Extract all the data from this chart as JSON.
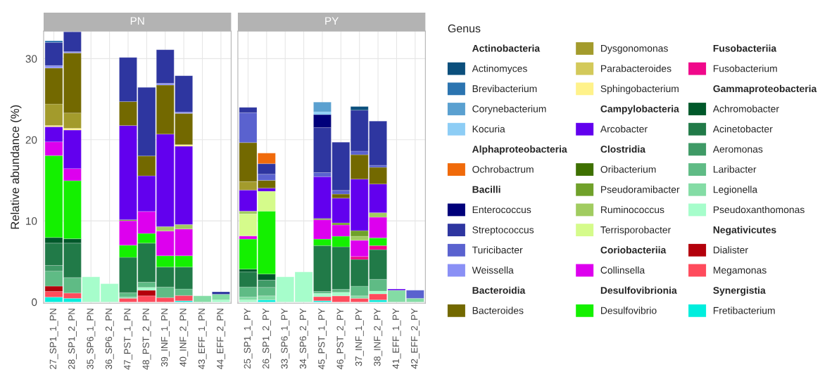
{
  "chart_data": [
    {
      "type": "bar",
      "stacked": true,
      "title": "PN",
      "ylabel": "Relative abundance (%)",
      "legend_title": "Genus",
      "legend": "right",
      "grid": true,
      "categories": [
        "27_SP1_1_PN",
        "28_SP1_2_PN",
        "35_SP6_1_PN",
        "36_SP6_2_PN",
        "47_PST_1_PN",
        "48_PST_2_PN",
        "39_INF_1_PN",
        "40_INF_2_PN",
        "43_EFF_1_PN",
        "44_EFF_2_PN"
      ],
      "ylim": [
        -0.15,
        33.4
      ],
      "yticks": [
        0,
        10,
        20,
        30
      ],
      "series": [
        {
          "name": "Fretibacterium",
          "color": "#00eedd",
          "values": [
            0.6,
            0.45,
            null,
            null,
            null,
            null,
            null,
            0.15,
            null,
            null
          ]
        },
        {
          "name": "Synergistia",
          "values": [
            null,
            null,
            null,
            null,
            null,
            null,
            null,
            null,
            null,
            null
          ]
        },
        {
          "name": "Megamonas",
          "color": "#ff4b5c",
          "values": [
            0.7,
            0.65,
            null,
            null,
            0.45,
            0.75,
            0.55,
            0.65,
            null,
            null
          ]
        },
        {
          "name": "Dialister",
          "color": "#b3000b",
          "values": [
            0.65,
            null,
            null,
            null,
            null,
            0.7,
            null,
            null,
            null,
            null
          ]
        },
        {
          "name": "Negativicutes",
          "values": [
            null,
            null,
            null,
            null,
            null,
            null,
            null,
            null,
            null,
            null
          ]
        },
        {
          "name": "Pseudoxanthomonas",
          "color": "#a6fdcb",
          "values": [
            null,
            null,
            3.1,
            2.25,
            null,
            0.35,
            null,
            null,
            null,
            0.25
          ]
        },
        {
          "name": "Legionella",
          "color": "#84dca5",
          "values": [
            null,
            null,
            null,
            null,
            0.15,
            null,
            null,
            null,
            0.75,
            0.7
          ]
        },
        {
          "name": "Laribacter",
          "color": "#5fbb85",
          "values": [
            1.85,
            1.9,
            null,
            null,
            0.55,
            0.65,
            1.3,
            0.8,
            null,
            null
          ]
        },
        {
          "name": "Aeromonas",
          "color": "#3f9a66",
          "values": [
            0.7,
            null,
            null,
            null,
            null,
            null,
            null,
            null,
            null,
            null
          ]
        },
        {
          "name": "Acinetobacter",
          "color": "#217a48",
          "values": [
            2.75,
            4.25,
            null,
            null,
            4.35,
            4.8,
            2.45,
            2.7,
            null,
            null
          ]
        },
        {
          "name": "Achromobacter",
          "color": "#00582a",
          "values": [
            0.7,
            0.55,
            null,
            null,
            null,
            null,
            null,
            null,
            null,
            null
          ]
        },
        {
          "name": "Gammaproteobacteria",
          "values": [
            null,
            null,
            null,
            null,
            null,
            null,
            null,
            null,
            null,
            null
          ]
        },
        {
          "name": "Fusobacterium",
          "color": "#f0088a",
          "values": [
            null,
            null,
            null,
            null,
            null,
            null,
            null,
            null,
            null,
            null
          ]
        },
        {
          "name": "Fusobacteriia",
          "values": [
            null,
            null,
            null,
            null,
            null,
            null,
            null,
            null,
            null,
            null
          ]
        },
        {
          "name": "Desulfovibrio",
          "color": "#14f000",
          "values": [
            10.1,
            7.15,
            null,
            null,
            1.5,
            1.2,
            1.4,
            1.4,
            null,
            null
          ]
        },
        {
          "name": "Desulfovibrionia",
          "values": [
            null,
            null,
            null,
            null,
            null,
            null,
            null,
            null,
            null,
            null
          ]
        },
        {
          "name": "Collinsella",
          "color": "#dd00ee",
          "values": [
            1.7,
            1.5,
            null,
            null,
            3.0,
            2.7,
            3.05,
            3.3,
            null,
            null
          ]
        },
        {
          "name": "Coriobacteriia",
          "values": [
            null,
            null,
            null,
            null,
            null,
            null,
            null,
            null,
            null,
            null
          ]
        },
        {
          "name": "Terrisporobacter",
          "color": "#d5fb8b",
          "values": [
            null,
            null,
            null,
            null,
            null,
            null,
            null,
            null,
            null,
            null
          ]
        },
        {
          "name": "Ruminococcus",
          "color": "#a1cc60",
          "values": [
            null,
            null,
            null,
            null,
            null,
            null,
            0.55,
            0.55,
            null,
            null
          ]
        },
        {
          "name": "Pseudoramibacter",
          "color": "#70a12a",
          "values": [
            null,
            null,
            null,
            null,
            0.15,
            null,
            null,
            null,
            null,
            null
          ]
        },
        {
          "name": "Oribacterium",
          "color": "#3e7000",
          "values": [
            null,
            null,
            null,
            null,
            null,
            null,
            null,
            null,
            null,
            null
          ]
        },
        {
          "name": "Clostridia",
          "values": [
            null,
            null,
            null,
            null,
            null,
            null,
            null,
            null,
            null,
            null
          ]
        },
        {
          "name": "Arcobacter",
          "color": "#6200ee",
          "values": [
            1.85,
            4.75,
            null,
            null,
            11.6,
            4.4,
            11.4,
            9.65,
            null,
            null
          ]
        },
        {
          "name": "Campylobacteria",
          "values": [
            null,
            null,
            null,
            null,
            null,
            null,
            null,
            null,
            null,
            null
          ]
        },
        {
          "name": "Sphingobacterium",
          "color": "#fff28a",
          "values": [
            0.15,
            0.2,
            null,
            null,
            null,
            null,
            null,
            0.2,
            null,
            null
          ]
        },
        {
          "name": "Parabacteroides",
          "color": "#d3c95a",
          "values": [
            null,
            null,
            null,
            null,
            null,
            null,
            null,
            null,
            null,
            null
          ]
        },
        {
          "name": "Dysgonomonas",
          "color": "#a39b2c",
          "values": [
            2.65,
            1.9,
            null,
            null,
            null,
            null,
            null,
            null,
            null,
            null
          ]
        },
        {
          "name": "Bacteroides",
          "color": "#736900",
          "values": [
            4.45,
            7.4,
            null,
            null,
            2.95,
            2.45,
            6.05,
            3.85,
            null,
            null
          ]
        },
        {
          "name": "Bacteroidia",
          "values": [
            null,
            null,
            null,
            null,
            null,
            null,
            null,
            null,
            null,
            null
          ]
        },
        {
          "name": "Weissella",
          "color": "#8a90f5",
          "values": [
            0.3,
            0.15,
            null,
            null,
            null,
            null,
            0.2,
            0.15,
            null,
            null
          ]
        },
        {
          "name": "Turicibacter",
          "color": "#5a62cf",
          "values": [
            null,
            null,
            null,
            null,
            null,
            null,
            null,
            null,
            null,
            null
          ]
        },
        {
          "name": "Streptococcus",
          "color": "#2e36a0",
          "values": [
            2.85,
            2.45,
            null,
            null,
            5.45,
            8.45,
            4.15,
            4.5,
            null,
            0.3
          ]
        },
        {
          "name": "Enterococcus",
          "color": "#00007a",
          "values": [
            null,
            null,
            null,
            null,
            null,
            null,
            null,
            null,
            null,
            null
          ]
        },
        {
          "name": "Bacilli",
          "values": [
            null,
            null,
            null,
            null,
            null,
            null,
            null,
            null,
            null,
            null
          ]
        },
        {
          "name": "Ochrobactrum",
          "color": "#f06a0a",
          "values": [
            null,
            null,
            null,
            null,
            null,
            null,
            null,
            null,
            null,
            null
          ]
        },
        {
          "name": "Alphaproteobacteria",
          "values": [
            null,
            null,
            null,
            null,
            null,
            null,
            null,
            null,
            null,
            null
          ]
        },
        {
          "name": "Kocuria",
          "color": "#8dcdf5",
          "values": [
            null,
            null,
            null,
            null,
            null,
            null,
            null,
            null,
            null,
            null
          ]
        },
        {
          "name": "Corynebacterium",
          "color": "#5aa0d0",
          "values": [
            null,
            null,
            null,
            null,
            null,
            null,
            null,
            null,
            null,
            null
          ]
        },
        {
          "name": "Brevibacterium",
          "color": "#2b74b0",
          "values": [
            0.2,
            null,
            null,
            null,
            null,
            null,
            null,
            null,
            null,
            null
          ]
        },
        {
          "name": "Actinomyces",
          "color": "#0b4f7c",
          "values": [
            null,
            null,
            null,
            null,
            null,
            null,
            null,
            null,
            null,
            null
          ]
        },
        {
          "name": "Actinobacteria",
          "values": [
            null,
            null,
            null,
            null,
            null,
            null,
            null,
            null,
            null,
            null
          ]
        }
      ]
    },
    {
      "type": "bar",
      "stacked": true,
      "title": "PY",
      "grid": true,
      "tick_labels": "x",
      "categories": [
        "25_SP1_1_PY",
        "26_SP1_2_PY",
        "33_SP6_1_PY",
        "34_SP6_2_PY",
        "45_PST_1_PY",
        "46_PST_2_PY",
        "37_INF_1_PY",
        "38_INF_2_PY",
        "41_EFF_1_PY",
        "42_EFF_2_PY"
      ],
      "ylim": [
        -0.15,
        33.4
      ],
      "yticks": [
        0,
        10,
        20,
        30
      ],
      "series": [
        {
          "color": "#00eedd",
          "values": [
            null,
            0.25,
            null,
            null,
            0.15,
            null,
            null,
            0.25,
            null,
            null
          ]
        },
        {
          "color": "#ff4b5c",
          "values": [
            null,
            null,
            null,
            null,
            0.5,
            0.75,
            0.45,
            0.75,
            null,
            null
          ]
        },
        {
          "color": "#a6fdcb",
          "values": [
            0.25,
            null,
            3.1,
            3.7,
            0.4,
            0.45,
            null,
            0.35,
            null,
            null
          ]
        },
        {
          "color": "#84dca5",
          "values": [
            0.35,
            0.5,
            null,
            null,
            null,
            null,
            0.3,
            null,
            1.45,
            0.45
          ]
        },
        {
          "color": "#5fbb85",
          "values": [
            1.25,
            1.05,
            null,
            null,
            0.25,
            0.35,
            1.2,
            1.45,
            null,
            null
          ]
        },
        {
          "color": "#3f9a66",
          "values": [
            null,
            0.9,
            null,
            null,
            null,
            null,
            null,
            null,
            null,
            null
          ]
        },
        {
          "color": "#217a48",
          "values": [
            1.85,
            null,
            null,
            null,
            5.65,
            5.25,
            3.3,
            3.65,
            null,
            null
          ]
        },
        {
          "color": "#00582a",
          "values": [
            0.35,
            0.75,
            null,
            null,
            null,
            null,
            null,
            null,
            null,
            null
          ]
        },
        {
          "color": "#f0088a",
          "values": [
            null,
            null,
            null,
            null,
            null,
            null,
            0.35,
            0.5,
            null,
            null
          ]
        },
        {
          "color": "#14f000",
          "values": [
            3.7,
            7.75,
            null,
            null,
            0.8,
            1.3,
            null,
            0.95,
            null,
            null
          ]
        },
        {
          "color": "#dd00ee",
          "values": [
            0.4,
            null,
            null,
            null,
            2.4,
            1.4,
            2.0,
            2.55,
            null,
            null
          ]
        },
        {
          "color": "#d5fb8b",
          "values": [
            2.7,
            2.45,
            null,
            null,
            null,
            null,
            null,
            null,
            null,
            null
          ]
        },
        {
          "color": "#a1cc60",
          "values": [
            0.35,
            null,
            null,
            null,
            null,
            null,
            0.5,
            0.55,
            null,
            null
          ]
        },
        {
          "color": "#70a12a",
          "values": [
            null,
            null,
            null,
            null,
            0.15,
            0.25,
            0.7,
            null,
            null,
            null
          ]
        },
        {
          "color": "#6200ee",
          "values": [
            2.6,
            0.4,
            null,
            null,
            5.15,
            3.05,
            6.35,
            3.55,
            0.15,
            null
          ]
        },
        {
          "color": "#a39b2c",
          "values": [
            1.05,
            null,
            null,
            null,
            null,
            null,
            null,
            null,
            null,
            null
          ]
        },
        {
          "color": "#736900",
          "values": [
            4.8,
            0.95,
            null,
            null,
            null,
            0.5,
            3.0,
            2.05,
            null,
            null
          ]
        },
        {
          "color": "#5a62cf",
          "values": [
            3.7,
            0.75,
            null,
            null,
            0.5,
            0.45,
            0.45,
            0.25,
            null,
            1.0
          ]
        },
        {
          "color": "#2e36a0",
          "values": [
            0.65,
            1.3,
            null,
            null,
            5.55,
            5.95,
            5.05,
            5.45,
            null,
            null
          ]
        },
        {
          "color": "#00007a",
          "values": [
            null,
            null,
            null,
            null,
            1.6,
            null,
            null,
            null,
            null,
            null
          ]
        },
        {
          "color": "#f06a0a",
          "values": [
            null,
            1.3,
            null,
            null,
            null,
            null,
            null,
            null,
            null,
            null
          ]
        },
        {
          "color": "#8dcdf5",
          "values": [
            null,
            null,
            null,
            null,
            0.35,
            null,
            null,
            null,
            null,
            null
          ]
        },
        {
          "color": "#5aa0d0",
          "values": [
            null,
            null,
            null,
            null,
            1.2,
            null,
            null,
            null,
            null,
            null
          ]
        },
        {
          "color": "#0b4f7c",
          "values": [
            null,
            null,
            null,
            null,
            null,
            null,
            0.45,
            null,
            null,
            null
          ]
        }
      ]
    }
  ]
}
